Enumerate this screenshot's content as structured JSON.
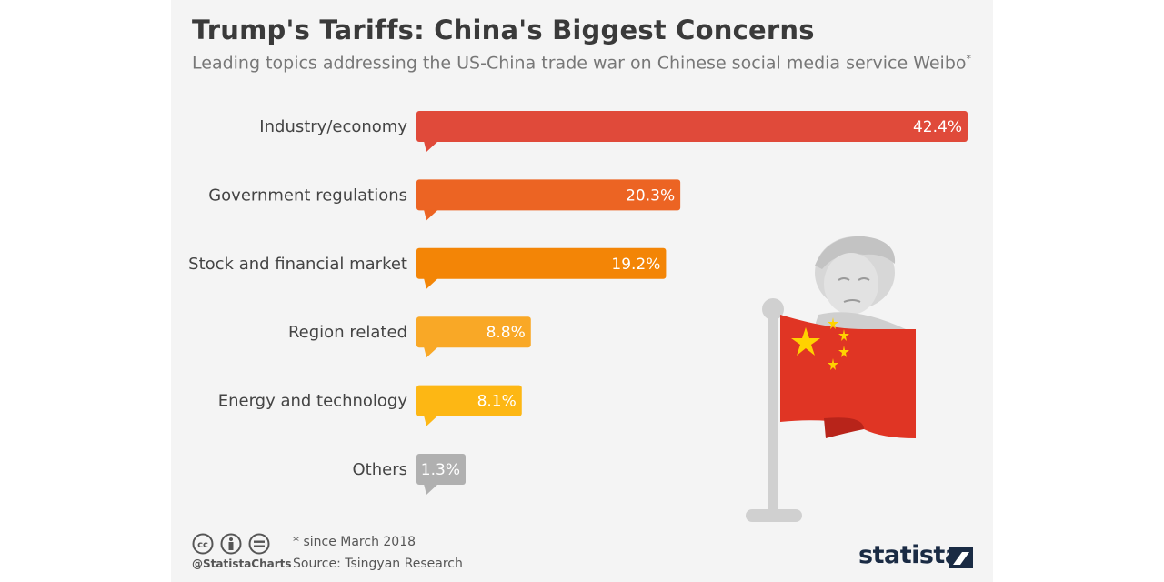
{
  "header": {
    "title": "Trump's Tariffs: China's Biggest Concerns",
    "subtitle": "Leading topics addressing the US-China trade war on Chinese social media service Weibo",
    "subtitle_marker": "*"
  },
  "chart_data": {
    "type": "bar",
    "orientation": "horizontal",
    "title": "Trump's Tariffs: China's Biggest Concerns",
    "categories": [
      "Industry/economy",
      "Government regulations",
      "Stock and financial market",
      "Region related",
      "Energy and technology",
      "Others"
    ],
    "values": [
      42.4,
      20.3,
      19.2,
      8.8,
      8.1,
      1.3
    ],
    "value_labels": [
      "42.4%",
      "20.3%",
      "19.2%",
      "8.8%",
      "8.1%",
      "1.3%"
    ],
    "colors": [
      "#e04a3a",
      "#ec6423",
      "#f38506",
      "#f9a826",
      "#fdb714",
      "#b0b0b0"
    ],
    "xlim": [
      0,
      42.4
    ],
    "grid": false
  },
  "footer": {
    "note": "* since March 2018",
    "source": "Source: Tsingyan Research",
    "handle": "@StatistaCharts",
    "logo_text": "statista",
    "license_icons": [
      "cc-icon",
      "attribution-icon",
      "no-derivatives-icon"
    ]
  },
  "illustration": {
    "icons": [
      "trump-portrait-icon",
      "china-flag-icon"
    ]
  },
  "colors": {
    "background": "#f4f4f4",
    "title": "#3a3a3a",
    "subtitle": "#777777",
    "label": "#444444",
    "brand": "#1a2b44"
  }
}
